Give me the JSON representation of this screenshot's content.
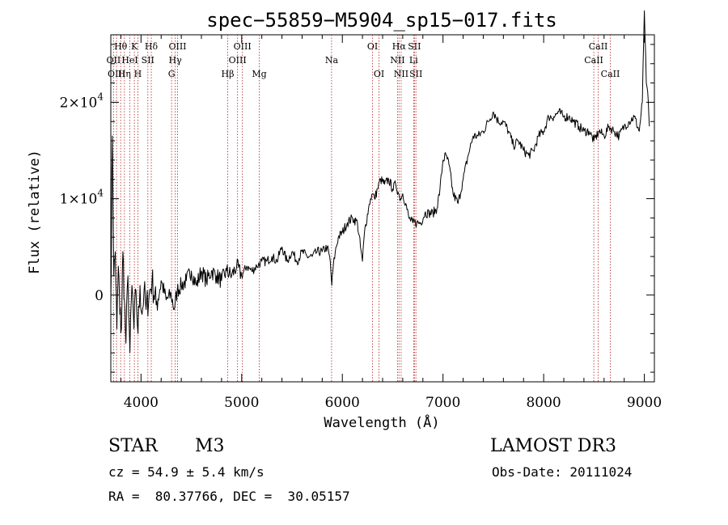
{
  "chart_data": {
    "type": "line",
    "title": "spec−55859−M5904_sp15−017.fits",
    "xlabel": "Wavelength (Å)",
    "ylabel": "Flux (relative)",
    "xlim": [
      3700,
      9100
    ],
    "ylim": [
      -9000,
      27000
    ],
    "x_ticks": [
      4000,
      5000,
      6000,
      7000,
      8000,
      9000
    ],
    "x_tick_labels": [
      "4000",
      "5000",
      "6000",
      "7000",
      "8000",
      "9000"
    ],
    "y_ticks": [
      0,
      10000,
      20000
    ],
    "y_tick_labels": [
      {
        "base": "0",
        "exp": ""
      },
      {
        "base": "1×10",
        "exp": "4"
      },
      {
        "base": "2×10",
        "exp": "4"
      }
    ],
    "line_color": "#000000",
    "marker_color": "#b22222",
    "series": [
      {
        "name": "flux",
        "x": [
          3700,
          3715,
          3730,
          3745,
          3760,
          3775,
          3790,
          3805,
          3820,
          3835,
          3850,
          3870,
          3890,
          3910,
          3930,
          3950,
          3970,
          3990,
          4010,
          4030,
          4050,
          4080,
          4110,
          4150,
          4200,
          4250,
          4300,
          4330,
          4360,
          4400,
          4450,
          4500,
          4550,
          4600,
          4650,
          4700,
          4750,
          4800,
          4850,
          4900,
          4950,
          5000,
          5050,
          5100,
          5150,
          5200,
          5250,
          5300,
          5350,
          5400,
          5450,
          5500,
          5550,
          5600,
          5650,
          5700,
          5750,
          5800,
          5850,
          5880,
          5895,
          5910,
          5930,
          5960,
          6000,
          6050,
          6100,
          6150,
          6180,
          6200,
          6220,
          6260,
          6280,
          6300,
          6320,
          6350,
          6380,
          6420,
          6460,
          6500,
          6530,
          6560,
          6580,
          6600,
          6630,
          6660,
          6700,
          6740,
          6780,
          6820,
          6860,
          6900,
          6940,
          6970,
          7000,
          7030,
          7060,
          7100,
          7150,
          7200,
          7250,
          7300,
          7350,
          7400,
          7450,
          7500,
          7550,
          7600,
          7650,
          7700,
          7750,
          7800,
          7850,
          7900,
          7950,
          8000,
          8050,
          8100,
          8150,
          8200,
          8250,
          8300,
          8350,
          8400,
          8450,
          8500,
          8550,
          8600,
          8650,
          8700,
          8750,
          8800,
          8850,
          8900,
          8950,
          8980,
          9000,
          9020,
          9040,
          9050
        ],
        "values": [
          -1000,
          16500,
          2000,
          4500,
          -3500,
          3000,
          -2000,
          -3500,
          4500,
          -500,
          -5000,
          2000,
          -6000,
          1000,
          -3500,
          500,
          -4000,
          1000,
          -2000,
          500,
          -1500,
          0,
          1500,
          -1000,
          1500,
          -500,
          0,
          -1500,
          500,
          1000,
          1500,
          2500,
          1000,
          2500,
          1500,
          2500,
          2000,
          1500,
          2500,
          2000,
          3000,
          2000,
          3000,
          2500,
          3000,
          3500,
          3500,
          4000,
          3500,
          5000,
          3500,
          4500,
          3500,
          4500,
          4000,
          4000,
          4500,
          4500,
          5000,
          3500,
          1000,
          3000,
          4500,
          6000,
          6500,
          7500,
          8000,
          7500,
          5000,
          3500,
          6500,
          9000,
          10000,
          10500,
          10000,
          11000,
          12000,
          11500,
          12000,
          11000,
          11500,
          10500,
          10000,
          10500,
          9500,
          8000,
          7500,
          7500,
          7500,
          8500,
          8500,
          8500,
          9000,
          11000,
          14000,
          14500,
          13500,
          10500,
          9500,
          12000,
          14500,
          16500,
          16500,
          17000,
          18000,
          19000,
          18000,
          18000,
          17000,
          15500,
          16000,
          15000,
          14500,
          15000,
          16500,
          17000,
          18500,
          18500,
          19000,
          18500,
          18500,
          18000,
          17500,
          17000,
          17000,
          16000,
          17000,
          16500,
          17500,
          17000,
          16500,
          17500,
          18000,
          18500,
          17000,
          20000,
          29500,
          22000,
          20000,
          17500
        ]
      }
    ],
    "line_markers": [
      {
        "label": "Hθ",
        "x": 3798,
        "row": 1
      },
      {
        "label": "OII",
        "x": 3727,
        "row": 2
      },
      {
        "label": "OIII",
        "x": 3757,
        "row": 3
      },
      {
        "label": "HeI",
        "x": 3889,
        "row": 2
      },
      {
        "label": "Hη",
        "x": 3835,
        "row": 3
      },
      {
        "label": "K",
        "x": 3934,
        "row": 1
      },
      {
        "label": "SII",
        "x": 4068,
        "row": 2
      },
      {
        "label": "H",
        "x": 3969,
        "row": 3
      },
      {
        "label": "Hδ",
        "x": 4102,
        "row": 1
      },
      {
        "label": "OIII",
        "x": 4363,
        "row": 1
      },
      {
        "label": "Hγ",
        "x": 4340,
        "row": 2
      },
      {
        "label": "G",
        "x": 4304,
        "row": 3
      },
      {
        "label": "OIII",
        "x": 5007,
        "row": 1
      },
      {
        "label": "OIII",
        "x": 4959,
        "row": 2
      },
      {
        "label": "Hβ",
        "x": 4861,
        "row": 3
      },
      {
        "label": "Mg",
        "x": 5175,
        "row": 3
      },
      {
        "label": "Na",
        "x": 5893,
        "row": 2
      },
      {
        "label": "OI",
        "x": 6300,
        "row": 1
      },
      {
        "label": "OI",
        "x": 6364,
        "row": 3
      },
      {
        "label": "Hα",
        "x": 6563,
        "row": 1
      },
      {
        "label": "SII",
        "x": 6716,
        "row": 1
      },
      {
        "label": "NII",
        "x": 6548,
        "row": 2
      },
      {
        "label": "Li",
        "x": 6708,
        "row": 2
      },
      {
        "label": "NII",
        "x": 6584,
        "row": 3
      },
      {
        "label": "SII",
        "x": 6731,
        "row": 3
      },
      {
        "label": "CaII",
        "x": 8542,
        "row": 1
      },
      {
        "label": "CaII",
        "x": 8498,
        "row": 2
      },
      {
        "label": "CaII",
        "x": 8662,
        "row": 3
      }
    ]
  },
  "info": {
    "object_class": "STAR",
    "subclass": "M3",
    "survey": "LAMOST DR3",
    "redshift_line": "cz = 54.9 ± 5.4 km/s",
    "obs_date": "Obs-Date: 20111024",
    "coords": "RA =  80.37766, DEC =  30.05157"
  }
}
